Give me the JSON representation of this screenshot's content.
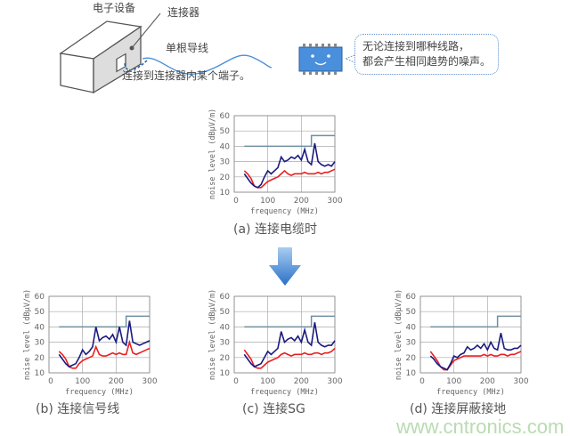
{
  "illustration": {
    "device_label": "电子设备",
    "connector_label": "连接器",
    "wire_label": "单根导线",
    "terminal_note": "连接到连接器内某个端子。",
    "bubble_line1": "无论连接到哪种线路，",
    "bubble_line2": "都会产生相同趋势的噪声。",
    "colors": {
      "wire": "#4a90d9",
      "chip": "#4a8fdc",
      "arrow": "#1f5fa8"
    }
  },
  "watermark": "www.cntronics.com",
  "chart_data": [
    {
      "id": "a",
      "type": "line",
      "caption": "(a) 连接电缆时",
      "xlabel": "frequency (MHz)",
      "ylabel": "noise level (dBμV/m)",
      "xlim": [
        0,
        300
      ],
      "ylim": [
        10,
        60
      ],
      "xticks": [
        0,
        100,
        200,
        300
      ],
      "yticks": [
        10,
        20,
        30,
        40,
        50,
        60
      ],
      "grid": true,
      "limit": {
        "x": [
          30,
          230,
          230,
          300
        ],
        "y": [
          40,
          40,
          47,
          47
        ],
        "color": "#6f8fa0"
      },
      "x": [
        30,
        40,
        50,
        60,
        70,
        80,
        90,
        100,
        110,
        120,
        130,
        140,
        150,
        160,
        170,
        180,
        190,
        200,
        210,
        220,
        230,
        240,
        250,
        260,
        270,
        280,
        290,
        300
      ],
      "series": [
        {
          "color": "#1a1a80",
          "values": [
            22,
            19,
            16,
            14,
            13,
            15,
            20,
            24,
            22,
            24,
            26,
            33,
            30,
            31,
            33,
            32,
            34,
            31,
            38,
            30,
            28,
            42,
            30,
            28,
            27,
            28,
            27,
            30
          ]
        },
        {
          "color": "#e82020",
          "values": [
            24,
            22,
            19,
            14,
            13,
            13,
            15,
            17,
            18,
            19,
            20,
            22,
            24,
            22,
            21,
            22,
            22,
            22,
            23,
            22,
            22,
            22,
            23,
            22,
            23,
            23,
            24,
            25
          ]
        }
      ]
    },
    {
      "id": "b",
      "type": "line",
      "caption": "(b) 连接信号线",
      "xlabel": "frequency (MHz)",
      "ylabel": "noise level (dBμV/m)",
      "xlim": [
        0,
        300
      ],
      "ylim": [
        10,
        60
      ],
      "xticks": [
        0,
        100,
        200,
        300
      ],
      "yticks": [
        10,
        20,
        30,
        40,
        50,
        60
      ],
      "grid": true,
      "limit": {
        "x": [
          30,
          230,
          230,
          300
        ],
        "y": [
          40,
          40,
          47,
          47
        ],
        "color": "#6f8fa0"
      },
      "x": [
        30,
        40,
        50,
        60,
        70,
        80,
        90,
        100,
        110,
        120,
        130,
        140,
        150,
        160,
        170,
        180,
        190,
        200,
        210,
        220,
        230,
        240,
        250,
        260,
        270,
        280,
        290,
        300
      ],
      "series": [
        {
          "color": "#1a1a80",
          "values": [
            22,
            19,
            16,
            14,
            15,
            16,
            20,
            25,
            22,
            24,
            27,
            40,
            31,
            33,
            34,
            32,
            35,
            30,
            40,
            30,
            28,
            44,
            30,
            29,
            28,
            29,
            30,
            31
          ]
        },
        {
          "color": "#e82020",
          "values": [
            24,
            22,
            19,
            14,
            13,
            13,
            16,
            18,
            19,
            20,
            21,
            27,
            22,
            21,
            21,
            22,
            23,
            22,
            23,
            22,
            22,
            30,
            23,
            22,
            23,
            24,
            25,
            26
          ]
        }
      ]
    },
    {
      "id": "c",
      "type": "line",
      "caption": "(c) 连接SG",
      "xlabel": "frequency (MHz)",
      "ylabel": "noise level (dBμV/m)",
      "xlim": [
        0,
        300
      ],
      "ylim": [
        10,
        60
      ],
      "xticks": [
        0,
        100,
        200,
        300
      ],
      "yticks": [
        10,
        20,
        30,
        40,
        50,
        60
      ],
      "grid": true,
      "limit": {
        "x": [
          30,
          230,
          230,
          300
        ],
        "y": [
          40,
          40,
          47,
          47
        ],
        "color": "#6f8fa0"
      },
      "x": [
        30,
        40,
        50,
        60,
        70,
        80,
        90,
        100,
        110,
        120,
        130,
        140,
        150,
        160,
        170,
        180,
        190,
        200,
        210,
        220,
        230,
        240,
        250,
        260,
        270,
        280,
        290,
        300
      ],
      "series": [
        {
          "color": "#1a1a80",
          "values": [
            22,
            19,
            16,
            14,
            15,
            16,
            20,
            24,
            22,
            24,
            26,
            37,
            30,
            32,
            33,
            31,
            34,
            30,
            38,
            30,
            28,
            43,
            30,
            28,
            27,
            28,
            28,
            31
          ]
        },
        {
          "color": "#e82020",
          "values": [
            25,
            22,
            19,
            14,
            13,
            13,
            15,
            17,
            18,
            19,
            20,
            22,
            23,
            22,
            21,
            22,
            22,
            22,
            23,
            22,
            22,
            23,
            23,
            22,
            23,
            23,
            24,
            26
          ]
        }
      ]
    },
    {
      "id": "d",
      "type": "line",
      "caption": "(d) 连接屏蔽接地",
      "xlabel": "frequency (MHz)",
      "ylabel": "noise level (dBμV/m)",
      "xlim": [
        0,
        300
      ],
      "ylim": [
        10,
        60
      ],
      "xticks": [
        0,
        100,
        200,
        300
      ],
      "yticks": [
        10,
        20,
        30,
        40,
        50,
        60
      ],
      "grid": true,
      "limit": {
        "x": [
          30,
          230,
          230,
          300
        ],
        "y": [
          40,
          40,
          47,
          47
        ],
        "color": "#6f8fa0"
      },
      "x": [
        30,
        40,
        50,
        60,
        70,
        80,
        90,
        100,
        110,
        120,
        130,
        140,
        150,
        160,
        170,
        180,
        190,
        200,
        210,
        220,
        230,
        240,
        250,
        260,
        270,
        280,
        290,
        300
      ],
      "series": [
        {
          "color": "#1a1a80",
          "values": [
            21,
            19,
            16,
            14,
            13,
            12,
            16,
            21,
            20,
            22,
            23,
            27,
            25,
            26,
            28,
            26,
            29,
            25,
            30,
            26,
            25,
            36,
            26,
            25,
            25,
            26,
            26,
            28
          ]
        },
        {
          "color": "#e82020",
          "values": [
            24,
            21,
            18,
            14,
            12,
            12,
            15,
            18,
            19,
            20,
            21,
            21,
            21,
            21,
            21,
            21,
            22,
            21,
            22,
            21,
            21,
            22,
            22,
            21,
            22,
            22,
            23,
            24
          ]
        }
      ]
    }
  ]
}
